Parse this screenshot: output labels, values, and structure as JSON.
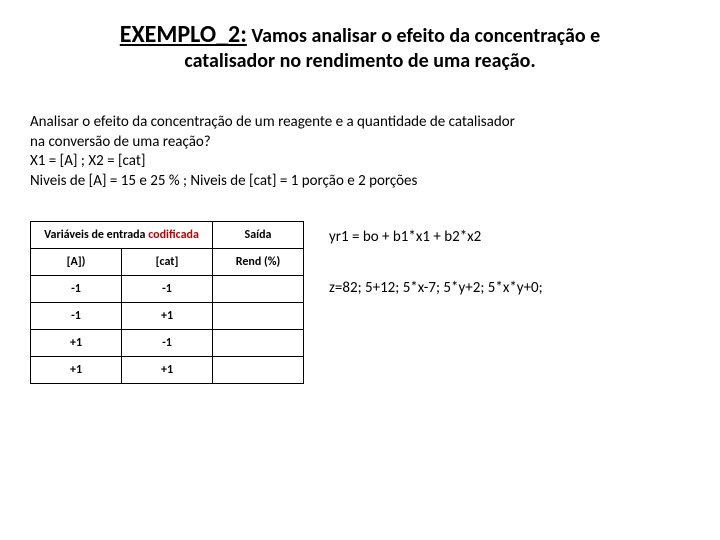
{
  "title": {
    "main": "EXEMPLO_2:",
    "rest": " Vamos analisar o efeito da  concentração e",
    "line2": "catalisador no rendimento de uma reação."
  },
  "body": {
    "l1": "Analisar o efeito da concentração de um reagente e a quantidade de catalisador",
    "l2": "na conversão de uma reação?",
    "l3": "X1 = [A] ; X2 = [cat]",
    "l4": "Niveis de [A] = 15   e 25 % ; Niveis de [cat] = 1 porção e 2 porções"
  },
  "table": {
    "header_inputs_prefix": "Variáveis de entrada ",
    "header_inputs_suffix": "codificada",
    "header_output": "Saída",
    "col1": "[A])",
    "col2": "[cat]",
    "col3": "Rend (%)",
    "rows": [
      {
        "a": "-1",
        "b": "-1",
        "c": ""
      },
      {
        "a": "-1",
        "b": "+1",
        "c": ""
      },
      {
        "a": "+1",
        "b": "-1",
        "c": ""
      },
      {
        "a": "+1",
        "b": "+1",
        "c": ""
      }
    ]
  },
  "equations": {
    "eq1": "yr1 = bo + b1*x1 +  b2*x2",
    "eq2": "z=82; 5+12; 5*x-7; 5*y+2; 5*x*y+0;"
  }
}
